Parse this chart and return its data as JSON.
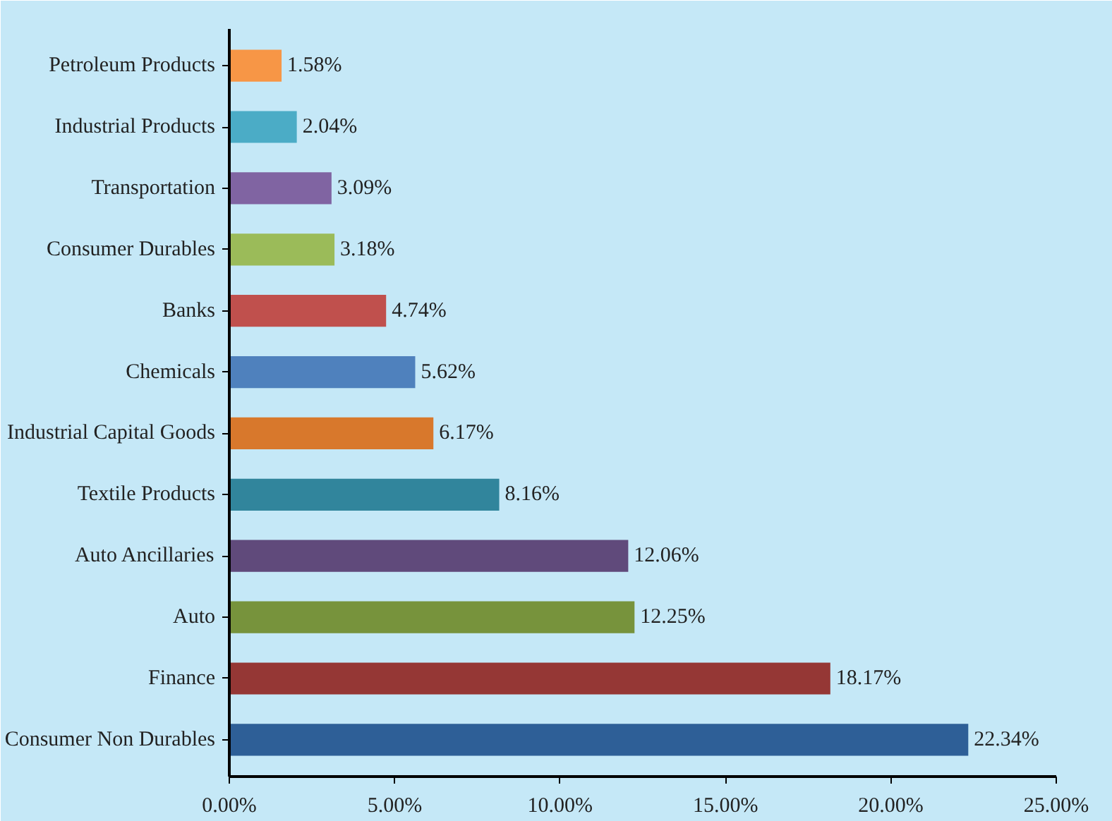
{
  "chart_data": {
    "type": "bar",
    "orientation": "horizontal",
    "categories": [
      "Petroleum Products",
      "Industrial Products",
      "Transportation",
      "Consumer Durables",
      "Banks",
      "Chemicals",
      "Industrial Capital Goods",
      "Textile Products",
      "Auto Ancillaries",
      "Auto",
      "Finance",
      "Consumer Non Durables"
    ],
    "values": [
      1.58,
      2.04,
      3.09,
      3.18,
      4.74,
      5.62,
      6.17,
      8.16,
      12.06,
      12.25,
      18.17,
      22.34
    ],
    "colors": [
      "#f79646",
      "#4bacc6",
      "#8064a2",
      "#9bbb59",
      "#c0504d",
      "#4f81bd",
      "#d8782c",
      "#31859c",
      "#604a7b",
      "#77933c",
      "#953735",
      "#2e5f97"
    ],
    "value_labels": [
      "1.58%",
      "2.04%",
      "3.09%",
      "3.18%",
      "4.74%",
      "5.62%",
      "6.17%",
      "8.16%",
      "12.06%",
      "12.25%",
      "18.17%",
      "22.34%"
    ],
    "xlim": [
      0,
      25
    ],
    "xticks": [
      {
        "value": 0,
        "label": "0.00%"
      },
      {
        "value": 5,
        "label": "5.00%"
      },
      {
        "value": 10,
        "label": "10.00%"
      },
      {
        "value": 15,
        "label": "15.00%"
      },
      {
        "value": 20,
        "label": "20.00%"
      },
      {
        "value": 25,
        "label": "25.00%"
      }
    ],
    "grid": false
  }
}
